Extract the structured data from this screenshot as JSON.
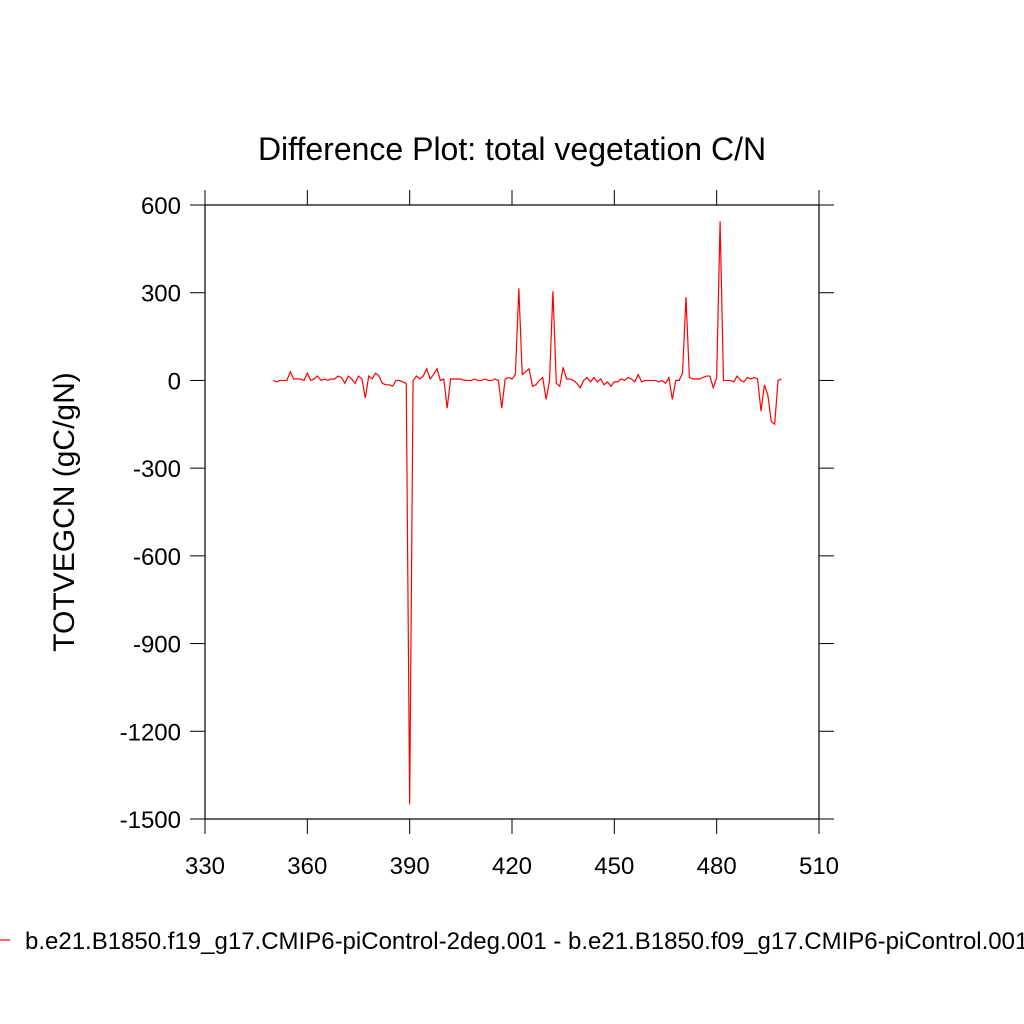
{
  "chart_data": {
    "type": "line",
    "title": "Difference Plot: total vegetation C/N",
    "y_label": "TOTVEGCN  (gC/gN)",
    "x": [
      350,
      351,
      352,
      353,
      354,
      355,
      356,
      357,
      358,
      359,
      360,
      361,
      362,
      363,
      364,
      365,
      366,
      367,
      368,
      369,
      370,
      371,
      372,
      373,
      374,
      375,
      376,
      377,
      378,
      379,
      380,
      381,
      382,
      383,
      384,
      385,
      386,
      387,
      388,
      389,
      390,
      391,
      392,
      393,
      394,
      395,
      396,
      397,
      398,
      399,
      400,
      401,
      402,
      403,
      404,
      405,
      406,
      407,
      408,
      409,
      410,
      411,
      412,
      413,
      414,
      415,
      416,
      417,
      418,
      419,
      420,
      421,
      422,
      423,
      424,
      425,
      426,
      427,
      428,
      429,
      430,
      431,
      432,
      433,
      434,
      435,
      436,
      437,
      438,
      439,
      440,
      441,
      442,
      443,
      444,
      445,
      446,
      447,
      448,
      449,
      450,
      451,
      452,
      453,
      454,
      455,
      456,
      457,
      458,
      459,
      460,
      461,
      462,
      463,
      464,
      465,
      466,
      467,
      468,
      469,
      470,
      471,
      472,
      473,
      474,
      475,
      476,
      477,
      478,
      479,
      480,
      481,
      482,
      483,
      484,
      485,
      486,
      487,
      488,
      489,
      490,
      491,
      492,
      493,
      494,
      495,
      496,
      497,
      498,
      499
    ],
    "series": [
      {
        "name": "b.e21.B1850.f19_g17.CMIP6-piControl-2deg.001 - b.e21.B1850.f09_g17.CMIP6-piControl.001",
        "color": "#ff0000",
        "values": [
          0,
          -5,
          0,
          0,
          0,
          30,
          5,
          5,
          5,
          0,
          25,
          0,
          5,
          15,
          0,
          5,
          0,
          5,
          5,
          15,
          10,
          -10,
          15,
          5,
          -10,
          15,
          5,
          -60,
          15,
          5,
          25,
          15,
          -10,
          -15,
          -15,
          -20,
          0,
          0,
          -5,
          -10,
          -1450,
          0,
          15,
          5,
          15,
          40,
          5,
          20,
          40,
          0,
          5,
          -95,
          5,
          5,
          5,
          5,
          0,
          0,
          0,
          5,
          0,
          0,
          5,
          0,
          0,
          5,
          0,
          -95,
          5,
          10,
          5,
          20,
          315,
          20,
          30,
          40,
          -20,
          -15,
          0,
          10,
          -65,
          0,
          305,
          -10,
          -20,
          45,
          5,
          5,
          0,
          -10,
          -25,
          0,
          10,
          -5,
          10,
          -5,
          5,
          -15,
          -5,
          -20,
          -5,
          -5,
          5,
          0,
          10,
          5,
          -5,
          20,
          -5,
          0,
          0,
          0,
          0,
          -5,
          0,
          -10,
          10,
          -65,
          0,
          0,
          25,
          285,
          10,
          5,
          5,
          5,
          10,
          15,
          15,
          -25,
          10,
          545,
          0,
          0,
          0,
          -5,
          15,
          0,
          -5,
          10,
          5,
          10,
          5,
          -105,
          -15,
          -50,
          -140,
          -150,
          0,
          5
        ]
      }
    ],
    "xlim": [
      330,
      510
    ],
    "xticks": [
      330,
      360,
      390,
      420,
      450,
      480,
      510
    ],
    "ylim": [
      -1500,
      600
    ],
    "yticks": [
      -1500,
      -1200,
      -900,
      -600,
      -300,
      0,
      300,
      600
    ]
  }
}
